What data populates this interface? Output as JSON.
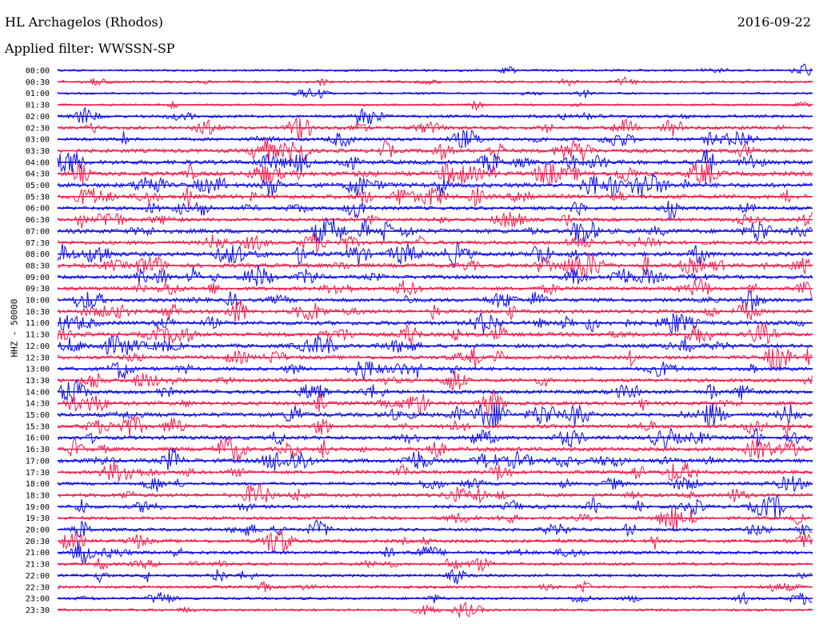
{
  "header": {
    "station": "HL Archagelos (Rhodos)",
    "date": "2016-09-22",
    "filter": "Applied filter: WWSSN-SP"
  },
  "chart_data": {
    "type": "helicorder",
    "title": "HL Archagelos (Rhodos)",
    "ylabel": "HHZ - 50000",
    "colors": [
      "#1010e6",
      "#f0204f"
    ],
    "row_labels": [
      "00:00",
      "00:30",
      "01:00",
      "01:30",
      "02:00",
      "02:30",
      "03:00",
      "03:30",
      "04:00",
      "04:30",
      "05:00",
      "05:30",
      "06:00",
      "06:30",
      "07:00",
      "07:30",
      "08:00",
      "08:30",
      "09:00",
      "09:30",
      "10:00",
      "10:30",
      "11:00",
      "11:30",
      "12:00",
      "12:30",
      "13:00",
      "13:30",
      "14:00",
      "14:30",
      "15:00",
      "15:30",
      "16:00",
      "16:30",
      "17:00",
      "17:30",
      "18:00",
      "18:30",
      "19:00",
      "19:30",
      "20:00",
      "20:30",
      "21:00",
      "21:30",
      "22:00",
      "22:30",
      "23:00",
      "23:30"
    ],
    "activity": [
      0.15,
      0.2,
      0.1,
      0.1,
      0.35,
      0.5,
      0.45,
      0.6,
      0.75,
      0.8,
      0.8,
      0.75,
      0.55,
      0.5,
      0.8,
      0.6,
      0.75,
      0.7,
      0.6,
      0.55,
      0.6,
      0.6,
      0.7,
      0.7,
      0.65,
      0.6,
      0.55,
      0.55,
      0.6,
      0.6,
      0.75,
      0.6,
      0.6,
      0.65,
      0.7,
      0.55,
      0.4,
      0.55,
      0.5,
      0.4,
      0.45,
      0.5,
      0.45,
      0.35,
      0.3,
      0.3,
      0.25,
      0.2
    ]
  }
}
